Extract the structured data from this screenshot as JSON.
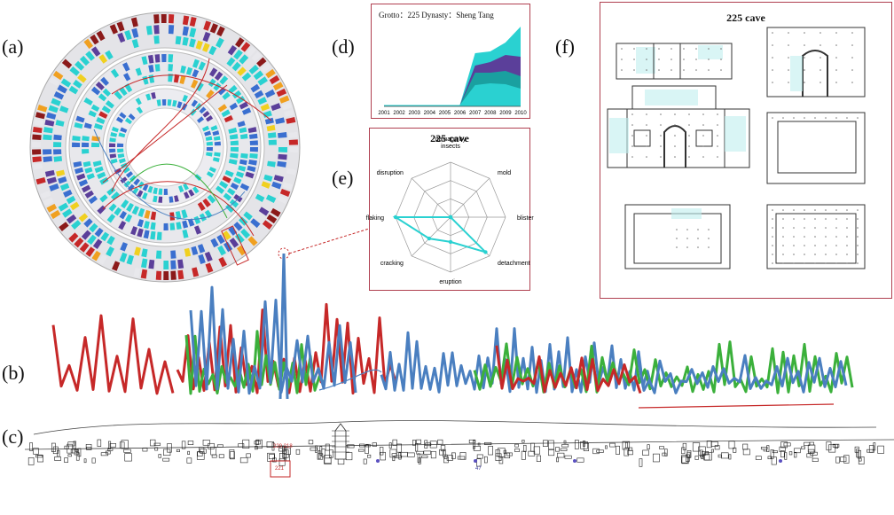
{
  "labels": {
    "a": "(a)",
    "b": "(b)",
    "c": "(c)",
    "d": "(d)",
    "e": "(e)",
    "f": "(f)"
  },
  "panel_d": {
    "header": "Grotto：225 Dynasty：Sheng Tang",
    "years": [
      "2001",
      "2002",
      "2003",
      "2004",
      "2005",
      "2006",
      "2007",
      "2008",
      "2009",
      "2010"
    ]
  },
  "panel_e": {
    "title": "225  cave",
    "axes": [
      "damage by insects",
      "mold",
      "blister",
      "detachment",
      "eruption",
      "cracking",
      "flaking",
      "disruption"
    ],
    "values": [
      0,
      0,
      0,
      0.9,
      0.45,
      0.55,
      1.0,
      0
    ]
  },
  "panel_f": {
    "title": "225  cave"
  },
  "panel_c": {
    "cave_labels": [
      "220 218",
      "221",
      "47"
    ]
  },
  "colors": {
    "teal": "#2ad1d1",
    "purple": "#5b3f9a",
    "red": "#c62828",
    "blue": "#4a7fc0",
    "green": "#3bb03b"
  }
}
